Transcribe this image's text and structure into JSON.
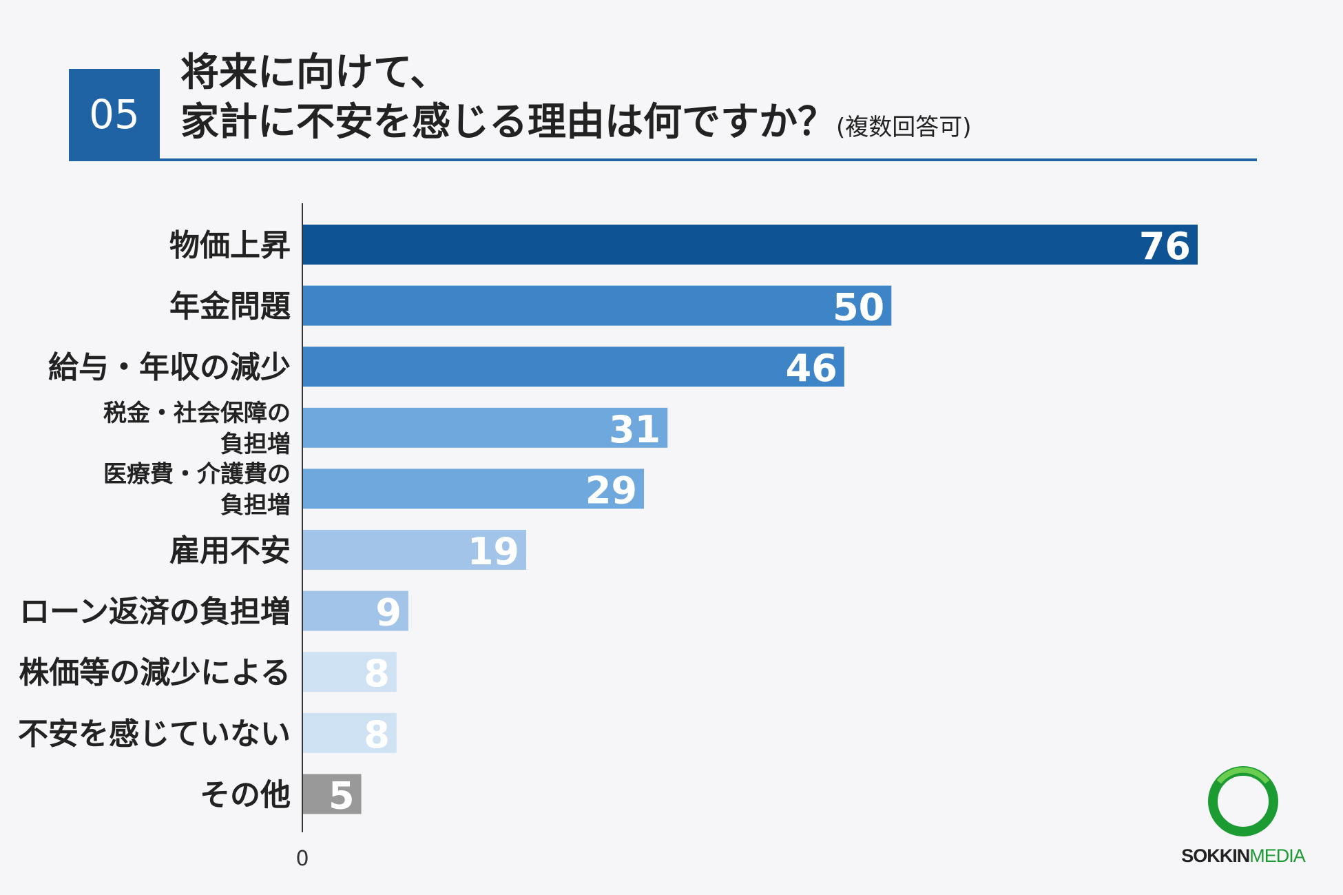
{
  "question": {
    "number": "05",
    "title_line1": "将来に向けて、",
    "title_line2": "家計に不安を感じる理由は何ですか？",
    "note": "(複数回答可)"
  },
  "chart_data": {
    "type": "bar",
    "orientation": "horizontal",
    "categories": [
      "物価上昇",
      "年金問題",
      "給与・年収の減少",
      "税金・社会保障の負担増",
      "医療費・介護費の負担増",
      "雇用不安",
      "ローン返済の負担増",
      "株価等の減少による",
      "不安を感じていない",
      "その他"
    ],
    "label_lines": [
      [
        "物価上昇"
      ],
      [
        "年金問題"
      ],
      [
        "給与・年収の減少"
      ],
      [
        "税金・社会保障の",
        "負担増"
      ],
      [
        "医療費・介護費の",
        "負担増"
      ],
      [
        "雇用不安"
      ],
      [
        "ローン返済の負担増"
      ],
      [
        "株価等の減少による"
      ],
      [
        "不安を感じていない"
      ],
      [
        "その他"
      ]
    ],
    "values": [
      76,
      50,
      46,
      31,
      29,
      19,
      9,
      8,
      8,
      5
    ],
    "colors": [
      "#0e5394",
      "#3d85c6",
      "#3d85c6",
      "#6fa8dc",
      "#6fa8dc",
      "#a2c4e9",
      "#a2c4e9",
      "#cfe2f3",
      "#cfe2f3",
      "#999999"
    ],
    "x_tick_label": "0",
    "xlim": [
      0,
      76
    ],
    "grid": false,
    "legend": "none",
    "title": "",
    "xlabel": "",
    "ylabel": ""
  },
  "logo": {
    "text_bold": "SOKKIN",
    "text_light": "MEDIA",
    "ring_color": "#1d9b33"
  }
}
